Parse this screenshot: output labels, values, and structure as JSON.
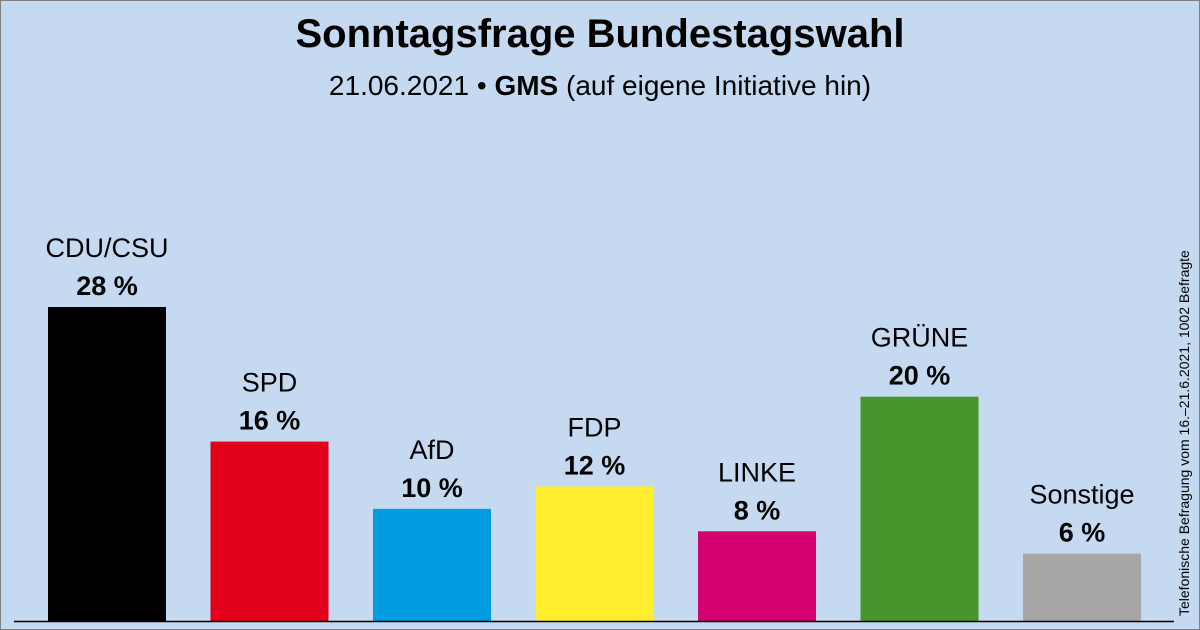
{
  "title": "Sonntagsfrage Bundestagswahl",
  "subtitle": {
    "date": "21.06.2021",
    "separator": "•",
    "institute": "GMS",
    "note": "(auf eigene Initiative hin)"
  },
  "side_note": "Telefonische Befragung vom 16.–21.6.2021, 1002 Befragte",
  "chart_data": {
    "type": "bar",
    "title": "Sonntagsfrage Bundestagswahl",
    "categories": [
      "CDU/CSU",
      "SPD",
      "AfD",
      "FDP",
      "LINKE",
      "GRÜNE",
      "Sonstige"
    ],
    "values": [
      28,
      16,
      10,
      12,
      8,
      20,
      6
    ],
    "value_labels": [
      "28 %",
      "16 %",
      "10 %",
      "12 %",
      "8 %",
      "20 %",
      "6 %"
    ],
    "colors": [
      "#000000",
      "#e3001b",
      "#009ee0",
      "#ffed2e",
      "#d4006f",
      "#46962b",
      "#a6a6a6"
    ],
    "unit": "%",
    "ylim": [
      0,
      28
    ],
    "grid": false,
    "legend": "none"
  }
}
